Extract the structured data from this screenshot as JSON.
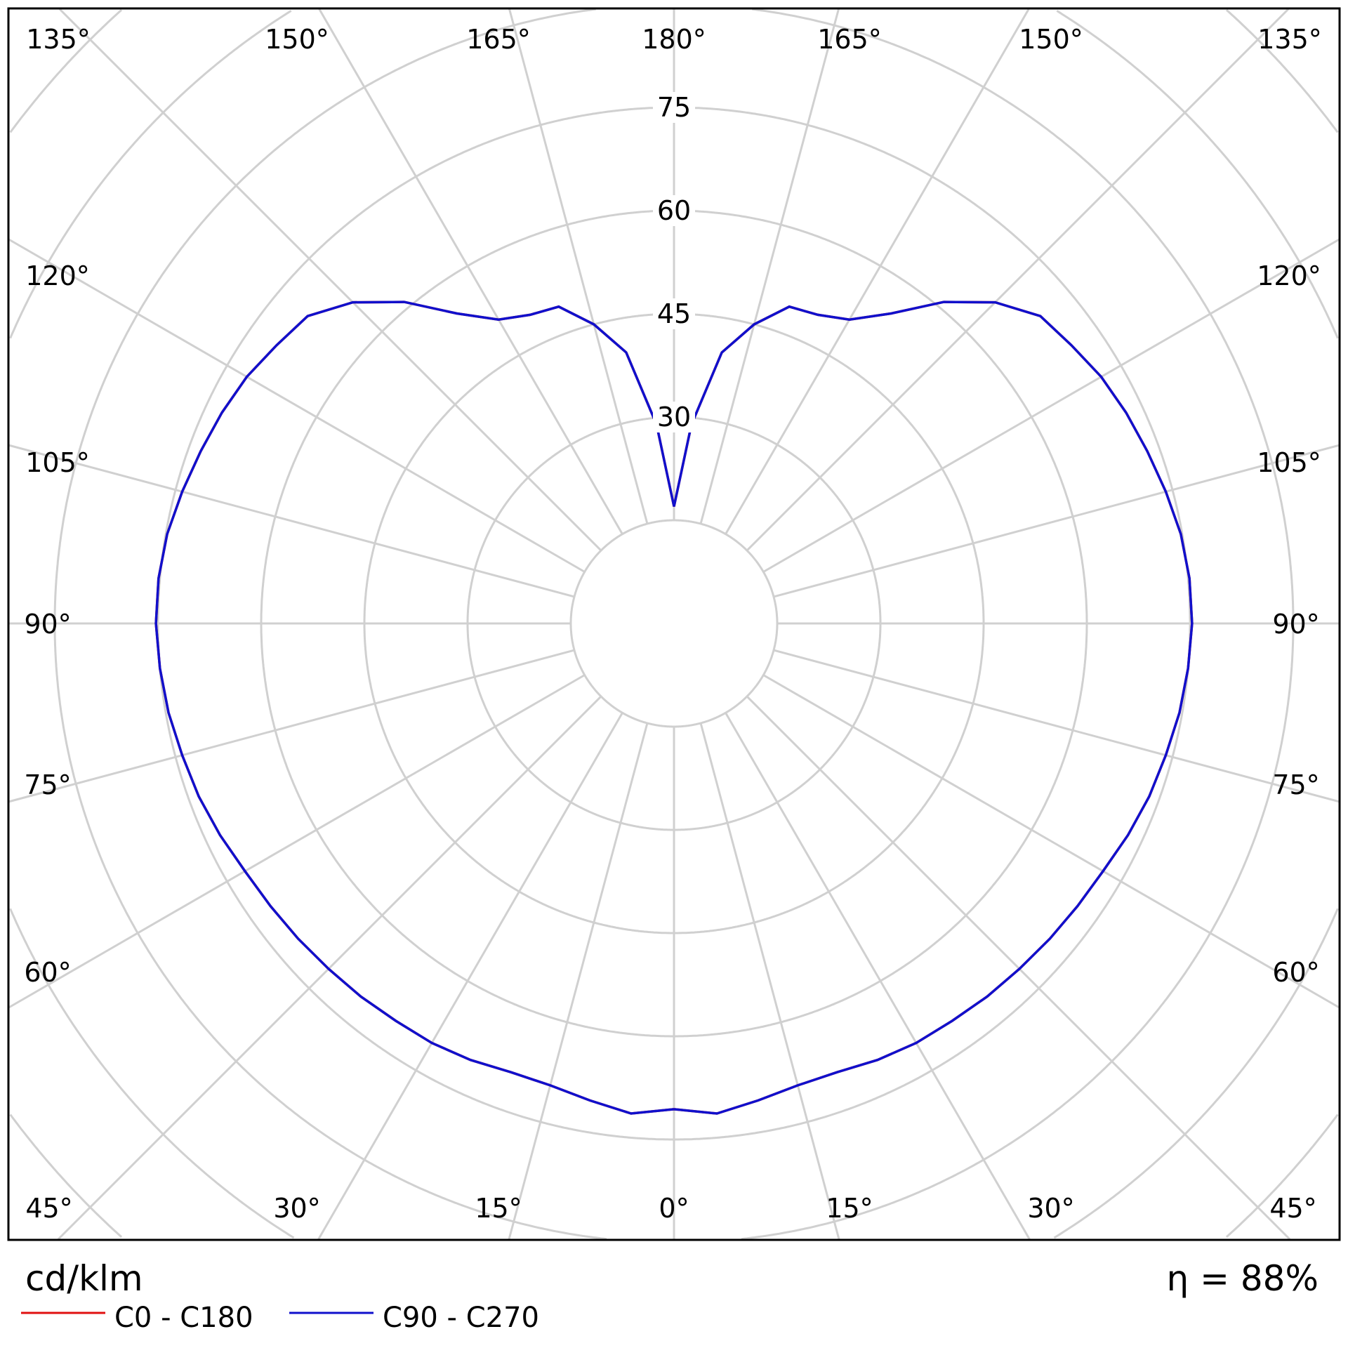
{
  "chart_data": {
    "type": "polar",
    "unit_label": "cd/klm",
    "efficiency_label": "η = 88%",
    "radial_ticks": [
      30,
      45,
      60,
      75
    ],
    "radial_grid_step": 15,
    "angle_labels": {
      "top": [
        "135°",
        "150°",
        "165°",
        "180°",
        "165°",
        "150°",
        "135°"
      ],
      "left": [
        "120°",
        "105°",
        "90°",
        "75°",
        "60°",
        "45°"
      ],
      "right": [
        "120°",
        "105°",
        "90°",
        "75°",
        "60°",
        "45°"
      ],
      "bottom": [
        "30°",
        "15°",
        "0°",
        "15°",
        "30°"
      ]
    },
    "grid": true,
    "legend_position": "bottom-left",
    "angles_deg": [
      0,
      5,
      10,
      15,
      20,
      25,
      30,
      35,
      40,
      45,
      50,
      55,
      60,
      65,
      70,
      75,
      80,
      85,
      90,
      95,
      100,
      105,
      110,
      115,
      120,
      125,
      130,
      135,
      140,
      145,
      150,
      155,
      160,
      165,
      170,
      175,
      180
    ],
    "series": [
      {
        "name": "C0 - C180",
        "color": "#e01010",
        "values": [
          70.6,
          71.5,
          70.4,
          69.5,
          69.4,
          70,
          70.4,
          70.5,
          70.8,
          71,
          71.3,
          71.6,
          72,
          72.8,
          73.5,
          74,
          74.6,
          75,
          75.3,
          75.2,
          74.8,
          74,
          73.2,
          72.5,
          71.7,
          70.5,
          69.5,
          66,
          61,
          55,
          51,
          49.5,
          49,
          45,
          40,
          29,
          17
        ]
      },
      {
        "name": "C90 - C270",
        "color": "#1010cc",
        "values": [
          70.6,
          71.5,
          70.4,
          69.5,
          69.4,
          70,
          70.4,
          70.5,
          70.8,
          71,
          71.3,
          71.6,
          72,
          72.8,
          73.5,
          74,
          74.6,
          75,
          75.3,
          75.2,
          74.8,
          74,
          73.2,
          72.5,
          71.7,
          70.5,
          69.5,
          66,
          61,
          55,
          51,
          49.5,
          49,
          45,
          40,
          29,
          17
        ]
      }
    ]
  }
}
